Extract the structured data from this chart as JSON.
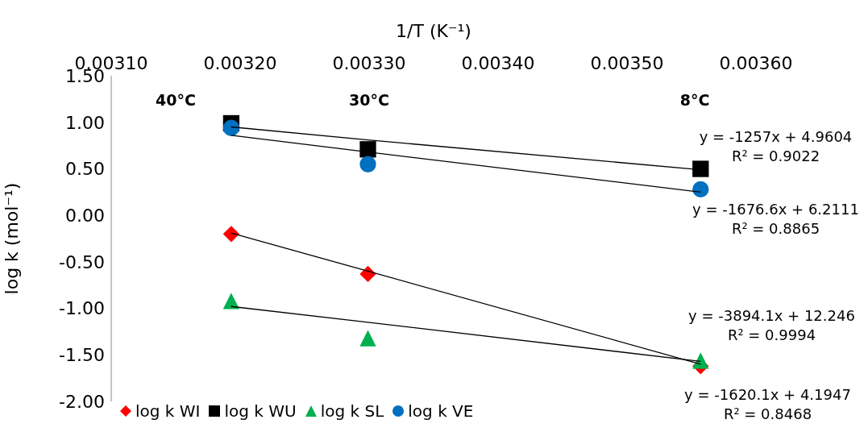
{
  "chart_data": {
    "type": "scatter",
    "xlabel": "1/T (K⁻¹)",
    "ylabel": "log k (mol⁻¹)",
    "xlim": [
      0.0031,
      0.0036
    ],
    "xticks": [
      {
        "value": 0.0031,
        "label": "0.00310"
      },
      {
        "value": 0.0032,
        "label": "0.00320"
      },
      {
        "value": 0.0033,
        "label": "0.00330"
      },
      {
        "value": 0.0034,
        "label": "0.00340"
      },
      {
        "value": 0.0035,
        "label": "0.00350"
      },
      {
        "value": 0.0036,
        "label": "0.00360"
      }
    ],
    "ylim": [
      -2,
      1.5
    ],
    "yticks": [
      {
        "value": -2,
        "label": "-2.00"
      },
      {
        "value": -1.5,
        "label": "-1.50"
      },
      {
        "value": -1,
        "label": "-1.00"
      },
      {
        "value": -0.5,
        "label": "-0.50"
      },
      {
        "value": 0,
        "label": "0.00"
      },
      {
        "value": 0.5,
        "label": "0.50"
      },
      {
        "value": 1,
        "label": "1.00"
      },
      {
        "value": 1.5,
        "label": "1.50"
      }
    ],
    "grid": false,
    "legend": "bottom left",
    "x": [
      0.003193,
      0.003299,
      0.003557
    ],
    "series": [
      {
        "name": "log k WI",
        "color": "#ff0000",
        "marker": "diamond",
        "values": [
          -0.2,
          -0.63,
          -1.62
        ]
      },
      {
        "name": "log k WU",
        "color": "#000000",
        "marker": "square",
        "values": [
          0.99,
          0.71,
          0.5
        ]
      },
      {
        "name": "log k SL",
        "color": "#00b050",
        "marker": "triangle",
        "values": [
          -0.92,
          -1.32,
          -1.56
        ]
      },
      {
        "name": "log k VE",
        "color": "#0070c0",
        "marker": "circle",
        "values": [
          0.94,
          0.55,
          0.28
        ]
      },
      {
        "type": "line",
        "color": "#000000",
        "values": [
          0.95,
          0.81,
          0.49
        ]
      },
      {
        "type": "line",
        "color": "#000000",
        "values": [
          0.86,
          0.68,
          0.25
        ]
      },
      {
        "type": "line",
        "color": "#000000",
        "values": [
          -0.19,
          -0.6,
          -1.6
        ]
      },
      {
        "type": "line",
        "color": "#000000",
        "values": [
          -0.98,
          -1.15,
          -1.57
        ]
      }
    ],
    "annotations": [
      "40°C",
      "30°C",
      "8°C",
      "y = -1257x + 4.9604\nR² = 0.9022",
      "y = -1676.6x + 6.2111\nR² = 0.8865",
      "y = -3894.1x + 12.246\nR² = 0.9994",
      "y = -1620.1x + 4.1947\nR² = 0.8468"
    ]
  }
}
